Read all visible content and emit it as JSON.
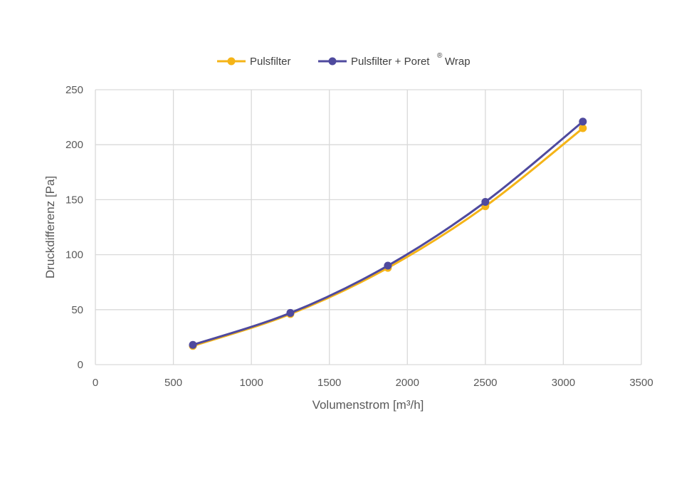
{
  "chart_data": {
    "type": "line",
    "title": "",
    "xlabel": "Volumenstrom [m³/h]",
    "ylabel": "Druckdifferenz [Pa]",
    "xlim": [
      0,
      3500
    ],
    "ylim": [
      0,
      250
    ],
    "xticks": [
      0,
      500,
      1000,
      1500,
      2000,
      2500,
      3000,
      3500
    ],
    "yticks": [
      0,
      50,
      100,
      150,
      200,
      250
    ],
    "grid": true,
    "legend_position": "top-center",
    "series": [
      {
        "name": "Pulsfilter",
        "color": "#F5B417",
        "x": [
          625,
          1250,
          1875,
          2500,
          3125
        ],
        "y": [
          17,
          46,
          88,
          144,
          215
        ]
      },
      {
        "name_main": "Pulsfilter + Poret",
        "name_sup": "®",
        "name_tail": "Wrap",
        "color": "#4F4A9E",
        "x": [
          625,
          1250,
          1875,
          2500,
          3125
        ],
        "y": [
          18,
          47,
          90,
          148,
          221
        ]
      }
    ]
  }
}
